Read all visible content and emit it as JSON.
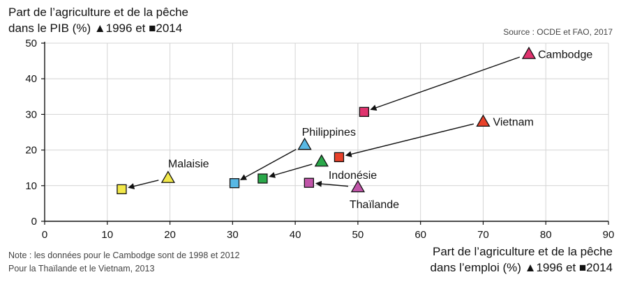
{
  "chart_data": {
    "type": "scatter",
    "ylabel_line1": "Part de l’agriculture et de la pêche",
    "ylabel_line2": "dans le PIB (%) ▲1996 et ■2014",
    "xlabel_line1": "Part de l’agriculture et de la pêche",
    "xlabel_line2": "dans l’emploi (%) ▲1996 et ■2014",
    "source": "Source : OCDE et FAO, 2017",
    "note_line1": "Note : les données pour le Cambodge sont de 1998 et 2012",
    "note_line2": "Pour la Thaïlande et le Vietnam, 2013",
    "xlim": [
      0,
      90
    ],
    "ylim": [
      0,
      50
    ],
    "xticks": [
      0,
      10,
      20,
      30,
      40,
      50,
      60,
      70,
      80,
      90
    ],
    "yticks": [
      0,
      10,
      20,
      30,
      40,
      50
    ],
    "grid": true,
    "series": [
      {
        "name": "1996",
        "marker": "triangle"
      },
      {
        "name": "2014",
        "marker": "square"
      }
    ],
    "points": [
      {
        "country": "Cambodge",
        "color": "#e0336e",
        "x1996": 77.3,
        "y1996": 47.0,
        "x2014": 51.0,
        "y2014": 30.7
      },
      {
        "country": "Vietnam",
        "color": "#e8412a",
        "x1996": 70.0,
        "y1996": 28.0,
        "x2014": 47.0,
        "y2014": 18.0
      },
      {
        "country": "Philippines",
        "color": "#58b8e4",
        "x1996": 41.5,
        "y1996": 21.5,
        "x2014": 30.3,
        "y2014": 10.7
      },
      {
        "country": "Indonésie",
        "color": "#2aa84a",
        "x1996": 44.2,
        "y1996": 16.8,
        "x2014": 34.8,
        "y2014": 12.0
      },
      {
        "country": "Malaisie",
        "color": "#f2e84a",
        "x1996": 19.7,
        "y1996": 12.2,
        "x2014": 12.3,
        "y2014": 9.0
      },
      {
        "country": "Thaïlande",
        "color": "#c054a8",
        "x1996": 50.0,
        "y1996": 9.6,
        "x2014": 42.2,
        "y2014": 10.8
      }
    ]
  }
}
